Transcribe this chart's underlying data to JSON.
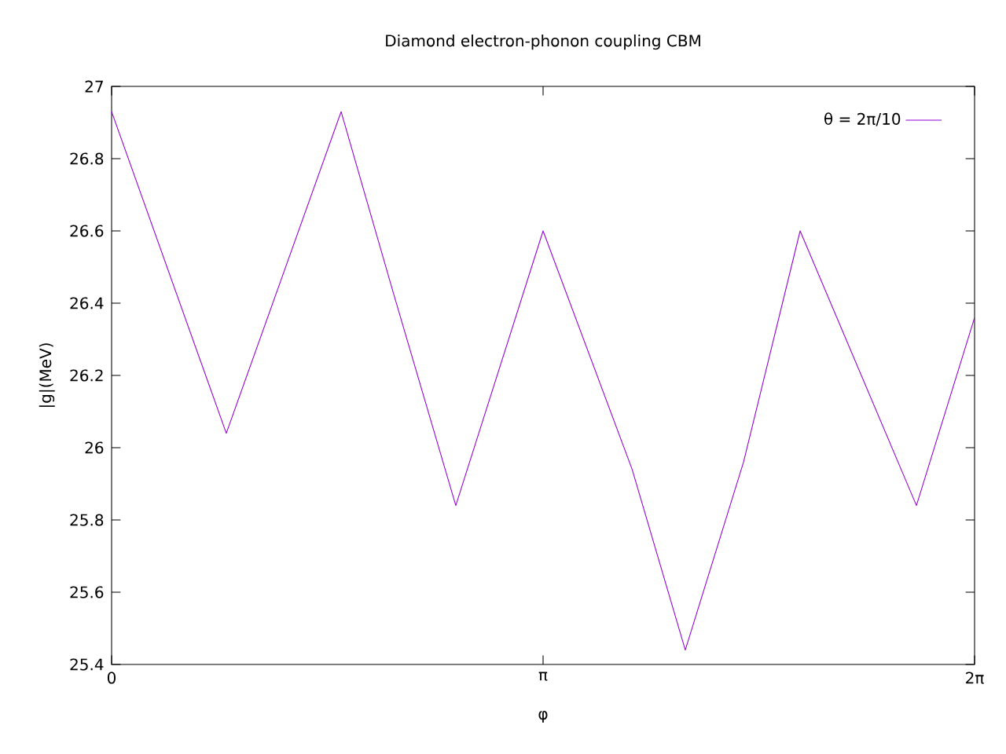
{
  "chart_data": {
    "type": "line",
    "title": "Diamond electron-phonon coupling CBM",
    "xlabel": "φ",
    "ylabel": "|g|(MeV)",
    "x": [
      0,
      0.835,
      1.671,
      2.05,
      2.506,
      3.1416,
      3.79,
      4.177,
      4.601,
      5.013,
      5.86,
      6.2832
    ],
    "series": [
      {
        "name": "θ = 2π/10",
        "color": "#9400d3",
        "values": [
          26.93,
          26.04,
          26.93,
          26.43,
          25.84,
          26.6,
          25.94,
          25.44,
          25.96,
          26.6,
          25.84,
          26.36
        ]
      }
    ],
    "xlim": [
      0,
      6.2832
    ],
    "ylim": [
      25.4,
      27
    ],
    "xticks": [
      {
        "value": 0,
        "label": "0"
      },
      {
        "value": 3.1416,
        "label": "π"
      },
      {
        "value": 6.2832,
        "label": "2π"
      }
    ],
    "yticks": [
      25.4,
      25.6,
      25.8,
      26,
      26.2,
      26.4,
      26.6,
      26.8,
      27
    ],
    "legend": "top right",
    "grid": false,
    "marker": "none",
    "line_style": "solid"
  }
}
